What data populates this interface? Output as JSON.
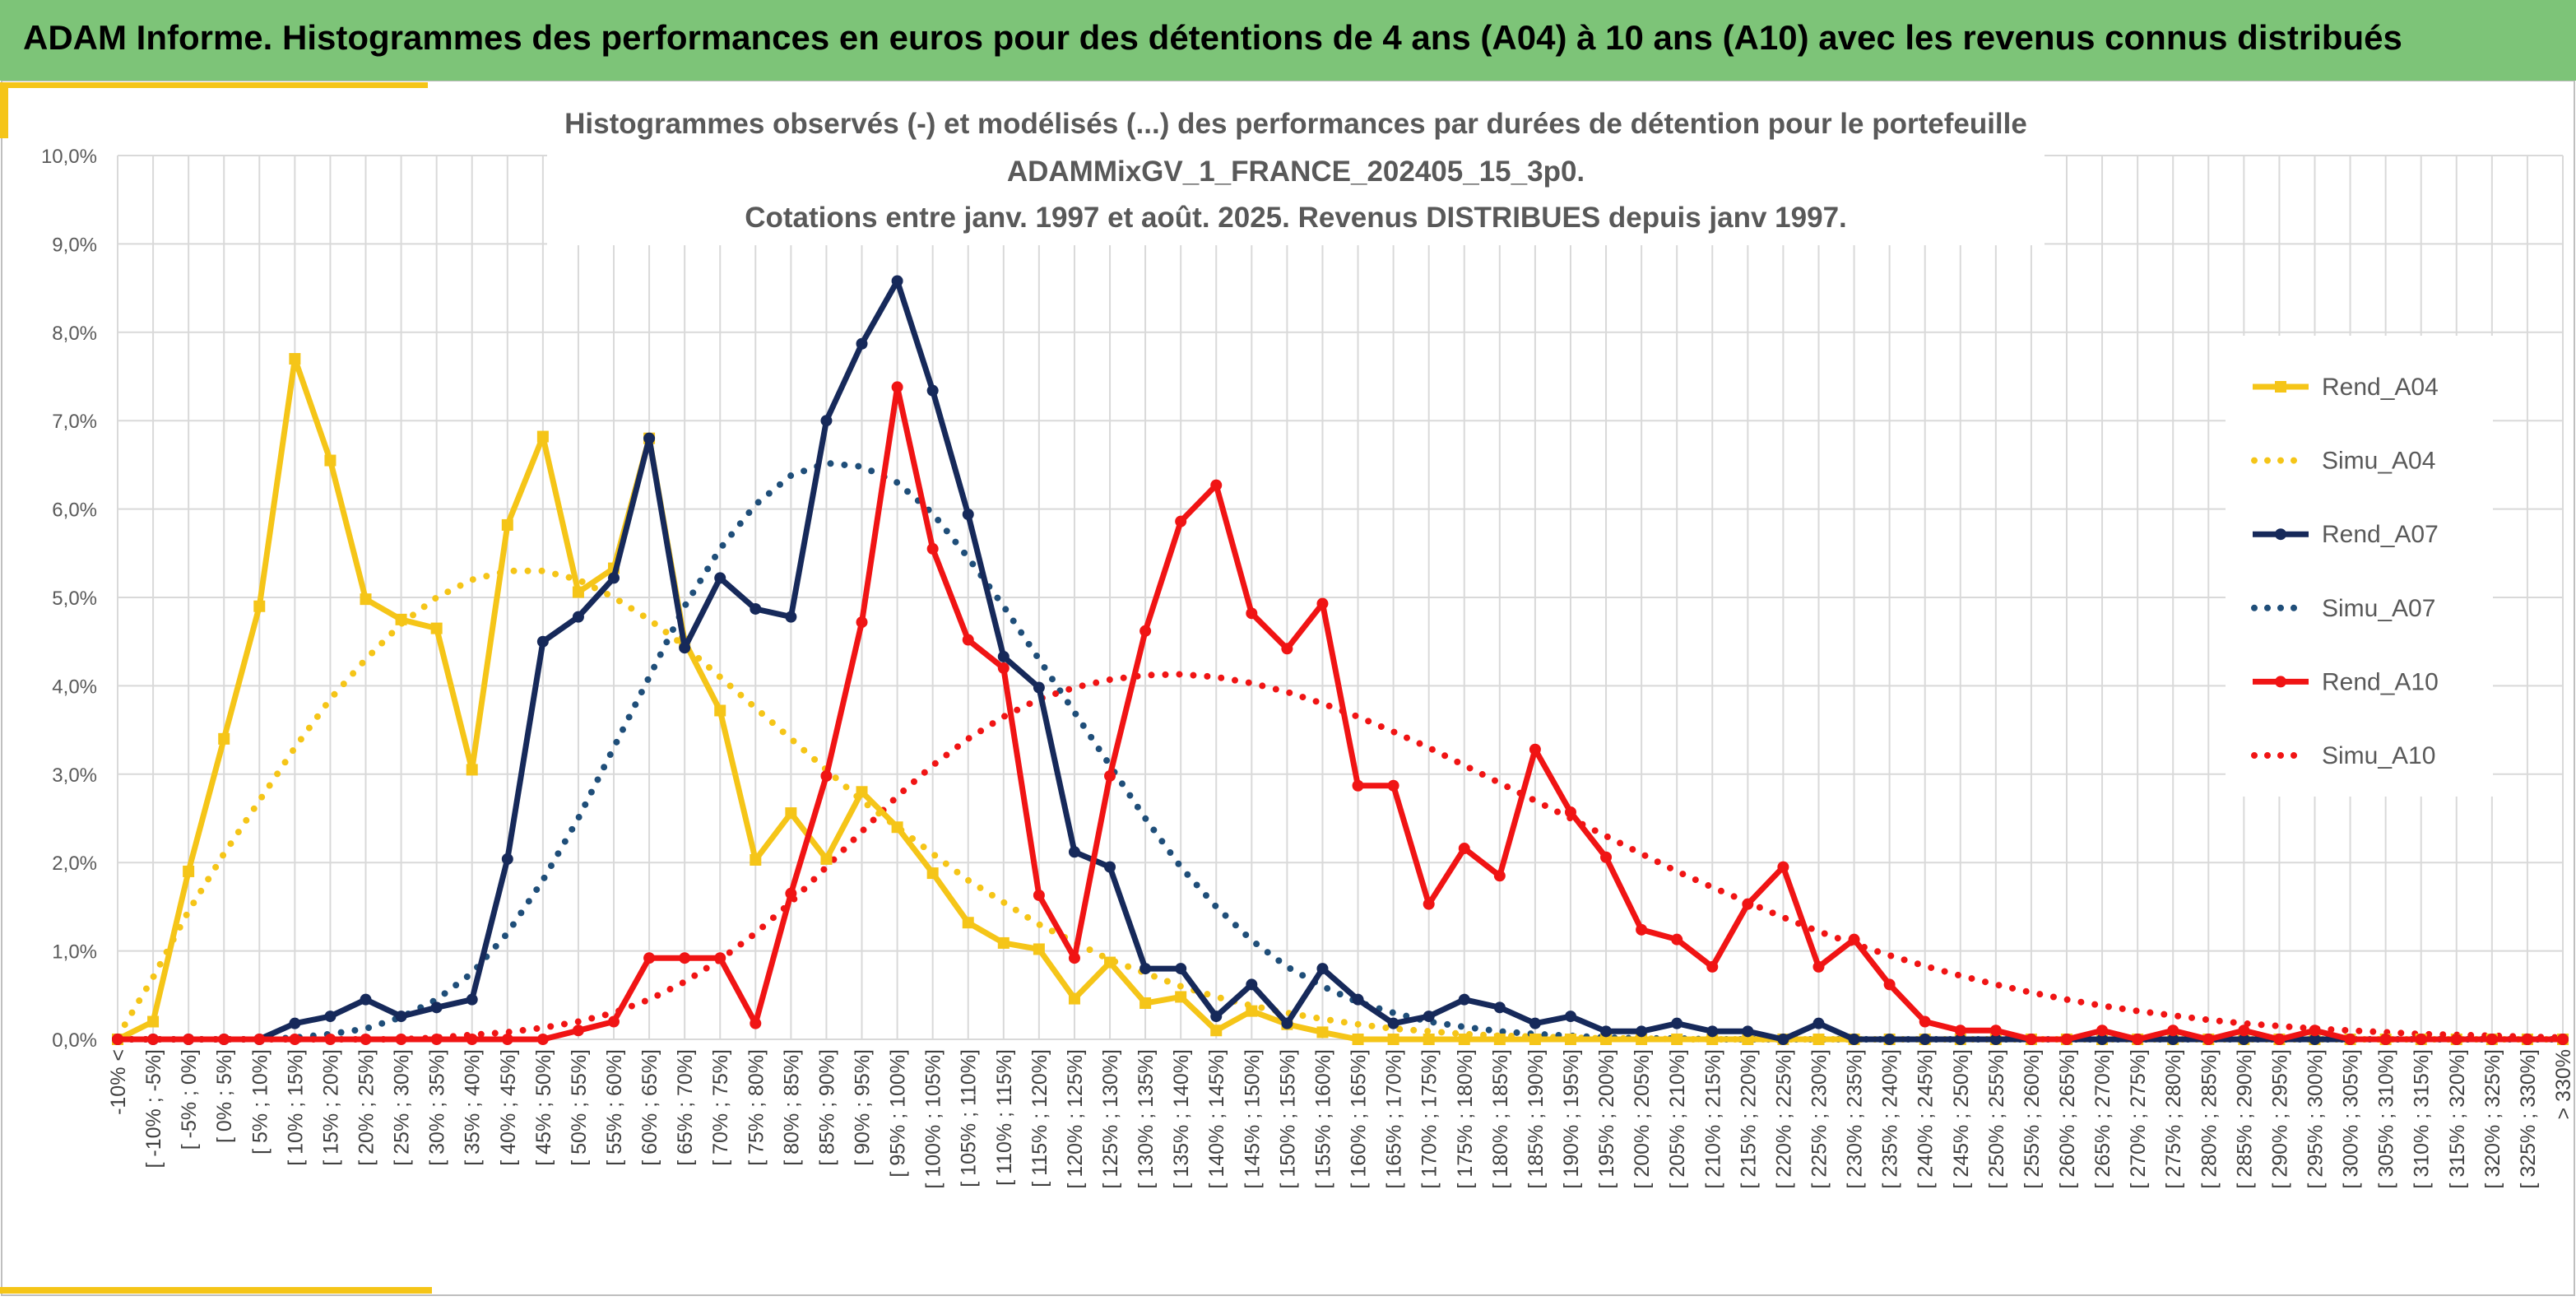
{
  "banner": {
    "title": "ADAM Informe. Histogrammes des performances en euros pour des détentions de 4 ans (A04) à 10 ans (A10) avec les revenus connus distribués"
  },
  "colors": {
    "banner": "#7dc478",
    "accent": "#f5c518",
    "a04": "#f5c518",
    "a07": "#16295a",
    "a10": "#f01414",
    "grid": "#d9d9d9"
  },
  "chart_data": {
    "type": "line",
    "title": [
      "Histogrammes observés (-) et modélisés (...) des performances par durées de détention pour le portefeuille",
      "ADAMMixGV_1_FRANCE_202405_15_3p0.",
      "Cotations entre janv. 1997 et août. 2025. Revenus DISTRIBUES depuis janv 1997."
    ],
    "y_ticks": [
      "0,0%",
      "1,0%",
      "2,0%",
      "3,0%",
      "4,0%",
      "5,0%",
      "6,0%",
      "7,0%",
      "8,0%",
      "9,0%",
      "10,0%"
    ],
    "ylim": [
      0,
      10
    ],
    "y_unit": "%",
    "grid": true,
    "legend_position": "right",
    "categories": [
      "-10% <",
      "[ -10% ; -5%]",
      "[ -5% ; 0%]",
      "[ 0% ; 5%]",
      "[ 5% ; 10%]",
      "[ 10% ; 15%]",
      "[ 15% ; 20%]",
      "[ 20% ; 25%]",
      "[ 25% ; 30%]",
      "[ 30% ; 35%]",
      "[ 35% ; 40%]",
      "[ 40% ; 45%]",
      "[ 45% ; 50%]",
      "[ 50% ; 55%]",
      "[ 55% ; 60%]",
      "[ 60% ; 65%]",
      "[ 65% ; 70%]",
      "[ 70% ; 75%]",
      "[ 75% ; 80%]",
      "[ 80% ; 85%]",
      "[ 85% ; 90%]",
      "[ 90% ; 95%]",
      "[ 95% ; 100%]",
      "[ 100% ; 105%]",
      "[ 105% ; 110%]",
      "[ 110% ; 115%]",
      "[ 115% ; 120%]",
      "[ 120% ; 125%]",
      "[ 125% ; 130%]",
      "[ 130% ; 135%]",
      "[ 135% ; 140%]",
      "[ 140% ; 145%]",
      "[ 145% ; 150%]",
      "[ 150% ; 155%]",
      "[ 155% ; 160%]",
      "[ 160% ; 165%]",
      "[ 165% ; 170%]",
      "[ 170% ; 175%]",
      "[ 175% ; 180%]",
      "[ 180% ; 185%]",
      "[ 185% ; 190%]",
      "[ 190% ; 195%]",
      "[ 195% ; 200%]",
      "[ 200% ; 205%]",
      "[ 205% ; 210%]",
      "[ 210% ; 215%]",
      "[ 215% ; 220%]",
      "[ 220% ; 225%]",
      "[ 225% ; 230%]",
      "[ 230% ; 235%]",
      "[ 235% ; 240%]",
      "[ 240% ; 245%]",
      "[ 245% ; 250%]",
      "[ 250% ; 255%]",
      "[ 255% ; 260%]",
      "[ 260% ; 265%]",
      "[ 265% ; 270%]",
      "[ 270% ; 275%]",
      "[ 275% ; 280%]",
      "[ 280% ; 285%]",
      "[ 285% ; 290%]",
      "[ 290% ; 295%]",
      "[ 295% ; 300%]",
      "[ 300% ; 305%]",
      "[ 305% ; 310%]",
      "[ 310% ; 315%]",
      "[ 315% ; 320%]",
      "[ 320% ; 325%]",
      "[ 325% ; 330%]",
      "> 330%"
    ],
    "series": [
      {
        "name": "Rend_A04",
        "style": "solid",
        "marker": "square",
        "color": "#f5c518",
        "values": [
          0.0,
          0.2,
          1.9,
          3.4,
          4.9,
          7.7,
          6.55,
          4.98,
          4.75,
          4.65,
          3.05,
          5.82,
          6.82,
          5.06,
          5.33,
          6.8,
          4.5,
          3.72,
          2.03,
          2.56,
          2.04,
          2.8,
          2.4,
          1.88,
          1.32,
          1.09,
          1.02,
          0.46,
          0.87,
          0.41,
          0.48,
          0.1,
          0.32,
          0.17,
          0.08,
          0.0,
          0,
          0,
          0,
          0,
          0,
          0,
          0,
          0,
          0,
          0,
          0,
          0,
          0,
          0,
          0,
          0,
          0,
          0,
          0,
          0,
          0,
          0,
          0,
          0,
          0,
          0,
          0,
          0,
          0,
          0,
          0,
          0,
          0,
          0
        ]
      },
      {
        "name": "Simu_A04",
        "style": "dotted",
        "marker": "none",
        "color": "#f5c518",
        "values": [
          0.03,
          0.7,
          1.45,
          2.1,
          2.7,
          3.3,
          3.85,
          4.3,
          4.7,
          5.0,
          5.2,
          5.3,
          5.3,
          5.2,
          5.0,
          4.75,
          4.45,
          4.1,
          3.75,
          3.4,
          3.05,
          2.7,
          2.4,
          2.1,
          1.8,
          1.55,
          1.3,
          1.1,
          0.9,
          0.75,
          0.6,
          0.48,
          0.38,
          0.3,
          0.23,
          0.17,
          0.12,
          0.09,
          0.06,
          0.04,
          0.03,
          0.02,
          0.01,
          0.01,
          0,
          0,
          0,
          0,
          0,
          0,
          0,
          0,
          0,
          0,
          0,
          0,
          0,
          0,
          0,
          0,
          0,
          0,
          0,
          0,
          0,
          0,
          0,
          0,
          0,
          0
        ]
      },
      {
        "name": "Rend_A07",
        "style": "solid",
        "marker": "circle",
        "color": "#16295a",
        "values": [
          0,
          0,
          0,
          0,
          0,
          0.18,
          0.26,
          0.45,
          0.26,
          0.36,
          0.45,
          2.04,
          4.5,
          4.78,
          5.22,
          6.8,
          4.43,
          5.22,
          4.87,
          4.78,
          7.0,
          7.87,
          8.58,
          7.34,
          5.94,
          4.33,
          3.98,
          2.12,
          1.95,
          0.8,
          0.8,
          0.26,
          0.62,
          0.18,
          0.8,
          0.45,
          0.18,
          0.26,
          0.45,
          0.36,
          0.18,
          0.26,
          0.09,
          0.09,
          0.18,
          0.09,
          0.09,
          0.0,
          0.18,
          0.0,
          0.0,
          0.0,
          0.0,
          0.0,
          0.0,
          0,
          0,
          0,
          0,
          0,
          0,
          0,
          0,
          0,
          0,
          0,
          0,
          0,
          0,
          0
        ]
      },
      {
        "name": "Simu_A07",
        "style": "dotted",
        "marker": "none",
        "color": "#1f4e79",
        "values": [
          0,
          0,
          0,
          0,
          0,
          0.02,
          0.06,
          0.12,
          0.25,
          0.45,
          0.75,
          1.2,
          1.8,
          2.5,
          3.3,
          4.1,
          4.9,
          5.55,
          6.05,
          6.38,
          6.52,
          6.48,
          6.3,
          5.95,
          5.45,
          4.9,
          4.3,
          3.7,
          3.1,
          2.5,
          1.95,
          1.5,
          1.12,
          0.82,
          0.6,
          0.42,
          0.3,
          0.2,
          0.14,
          0.09,
          0.06,
          0.04,
          0.02,
          0.01,
          0.01,
          0,
          0,
          0,
          0,
          0,
          0,
          0,
          0,
          0,
          0,
          0,
          0,
          0,
          0,
          0,
          0,
          0,
          0,
          0,
          0,
          0,
          0,
          0,
          0,
          0
        ]
      },
      {
        "name": "Rend_A10",
        "style": "solid",
        "marker": "circle",
        "color": "#f01414",
        "values": [
          0,
          0,
          0,
          0,
          0,
          0,
          0,
          0,
          0,
          0,
          0,
          0,
          0,
          0.1,
          0.2,
          0.92,
          0.92,
          0.92,
          0.18,
          1.65,
          2.98,
          4.72,
          7.38,
          5.55,
          4.52,
          4.2,
          1.63,
          0.92,
          2.98,
          4.62,
          5.86,
          6.27,
          4.82,
          4.42,
          4.93,
          2.87,
          2.87,
          1.53,
          2.16,
          1.85,
          3.28,
          2.57,
          2.06,
          1.24,
          1.13,
          0.82,
          1.53,
          1.95,
          0.82,
          1.13,
          0.62,
          0.2,
          0.1,
          0.1,
          0.0,
          0.0,
          0.1,
          0.0,
          0.1,
          0.0,
          0.1,
          0.0,
          0.1,
          0.0,
          0.0,
          0.0,
          0.0,
          0.0,
          0.0,
          0.0
        ]
      },
      {
        "name": "Simu_A10",
        "style": "dotted",
        "marker": "none",
        "color": "#f01414",
        "values": [
          0,
          0,
          0,
          0,
          0,
          0,
          0,
          0,
          0,
          0.02,
          0.05,
          0.08,
          0.13,
          0.2,
          0.3,
          0.45,
          0.65,
          0.9,
          1.2,
          1.55,
          1.95,
          2.35,
          2.75,
          3.1,
          3.4,
          3.65,
          3.85,
          3.98,
          4.07,
          4.12,
          4.13,
          4.1,
          4.03,
          3.93,
          3.8,
          3.65,
          3.48,
          3.3,
          3.1,
          2.9,
          2.7,
          2.5,
          2.3,
          2.1,
          1.9,
          1.72,
          1.55,
          1.38,
          1.22,
          1.08,
          0.95,
          0.83,
          0.72,
          0.62,
          0.53,
          0.45,
          0.38,
          0.32,
          0.27,
          0.22,
          0.18,
          0.15,
          0.12,
          0.1,
          0.08,
          0.06,
          0.05,
          0.04,
          0.03,
          0.02
        ]
      }
    ]
  }
}
